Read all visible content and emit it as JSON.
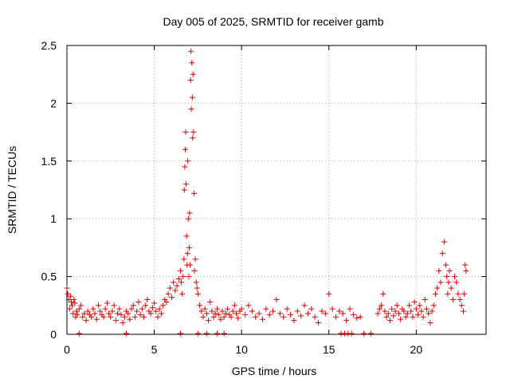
{
  "chart_data": {
    "type": "scatter",
    "title": "Day 005 of 2025, SRMTID for receiver gamb",
    "xlabel": "GPS time / hours",
    "ylabel": "SRMTID / TECUs",
    "xlim": [
      0,
      24
    ],
    "ylim": [
      0,
      2.5
    ],
    "x_ticks": [
      0,
      5,
      10,
      15,
      20
    ],
    "x_tick_labels": [
      "0",
      "5",
      "10",
      "15",
      "20"
    ],
    "y_ticks": [
      0,
      0.5,
      1,
      1.5,
      2,
      2.5
    ],
    "y_tick_labels": [
      "0",
      "0.5",
      "1",
      "1.5",
      "2",
      "2.5"
    ],
    "grid": true,
    "marker": "plus",
    "series": [
      {
        "name": "SRMTID",
        "color": "#e00000",
        "x": [
          0.0,
          0.05,
          0.1,
          0.15,
          0.2,
          0.25,
          0.3,
          0.35,
          0.4,
          0.45,
          0.5,
          0.55,
          0.6,
          0.7,
          0.8,
          0.9,
          1.0,
          1.1,
          1.2,
          1.3,
          1.4,
          1.5,
          1.6,
          1.7,
          1.8,
          1.9,
          2.0,
          2.1,
          2.2,
          2.3,
          2.4,
          2.5,
          2.6,
          2.7,
          2.8,
          2.9,
          3.0,
          3.1,
          3.2,
          3.3,
          3.4,
          3.5,
          3.6,
          3.7,
          3.8,
          3.9,
          4.0,
          4.1,
          4.2,
          4.3,
          4.4,
          4.5,
          4.6,
          4.7,
          4.8,
          4.9,
          5.0,
          5.1,
          5.2,
          5.3,
          5.4,
          5.5,
          5.6,
          5.7,
          5.8,
          5.9,
          6.0,
          6.1,
          6.2,
          6.3,
          6.4,
          6.5,
          6.55,
          6.6,
          6.65,
          6.7,
          6.72,
          6.75,
          6.78,
          6.8,
          6.82,
          6.85,
          6.88,
          6.9,
          6.92,
          6.95,
          6.98,
          7.0,
          7.02,
          7.05,
          7.08,
          7.1,
          7.12,
          7.15,
          7.18,
          7.2,
          7.22,
          7.25,
          7.28,
          7.3,
          7.35,
          7.4,
          7.45,
          7.5,
          7.6,
          7.7,
          7.8,
          7.9,
          8.0,
          8.1,
          8.2,
          8.3,
          8.4,
          8.5,
          8.6,
          8.7,
          8.8,
          8.9,
          9.0,
          9.1,
          9.2,
          9.3,
          9.4,
          9.5,
          9.6,
          9.7,
          9.8,
          9.9,
          10.0,
          10.2,
          10.4,
          10.6,
          10.8,
          11.0,
          11.2,
          11.4,
          11.6,
          11.8,
          12.0,
          12.2,
          12.4,
          12.6,
          12.8,
          13.0,
          13.2,
          13.4,
          13.6,
          13.8,
          14.0,
          14.2,
          14.4,
          14.6,
          14.8,
          15.0,
          15.2,
          15.4,
          15.6,
          15.8,
          16.0,
          16.2,
          16.4,
          16.6,
          16.8,
          17.8,
          17.9,
          18.0,
          18.1,
          18.2,
          18.3,
          18.4,
          18.5,
          18.6,
          18.7,
          18.8,
          18.9,
          19.0,
          19.1,
          19.2,
          19.3,
          19.4,
          19.5,
          19.6,
          19.7,
          19.8,
          19.9,
          20.0,
          20.1,
          20.2,
          20.3,
          20.4,
          20.5,
          20.6,
          20.7,
          20.8,
          20.9,
          21.0,
          21.1,
          21.2,
          21.3,
          21.4,
          21.5,
          21.6,
          21.7,
          21.75,
          21.8,
          21.85,
          21.9,
          22.0,
          22.1,
          22.2,
          22.3,
          22.4,
          22.5,
          22.6,
          22.7,
          22.75,
          22.8,
          22.85
        ],
        "y": [
          0.4,
          0.35,
          0.3,
          0.22,
          0.33,
          0.28,
          0.25,
          0.18,
          0.3,
          0.27,
          0.15,
          0.2,
          0.17,
          0.22,
          0.25,
          0.15,
          0.18,
          0.12,
          0.2,
          0.17,
          0.15,
          0.22,
          0.18,
          0.13,
          0.25,
          0.2,
          0.17,
          0.15,
          0.22,
          0.27,
          0.18,
          0.15,
          0.2,
          0.25,
          0.12,
          0.18,
          0.22,
          0.17,
          0.1,
          0.15,
          0.2,
          0.18,
          0.13,
          0.22,
          0.25,
          0.15,
          0.2,
          0.28,
          0.17,
          0.22,
          0.15,
          0.25,
          0.3,
          0.2,
          0.18,
          0.23,
          0.27,
          0.2,
          0.15,
          0.22,
          0.18,
          0.25,
          0.3,
          0.28,
          0.35,
          0.4,
          0.32,
          0.45,
          0.38,
          0.42,
          0.48,
          0.55,
          0.45,
          0.35,
          0.5,
          0.65,
          1.25,
          1.45,
          1.6,
          1.75,
          1.3,
          0.85,
          0.6,
          0.7,
          1.5,
          1.0,
          0.5,
          0.75,
          1.05,
          0.6,
          2.2,
          2.45,
          1.95,
          2.35,
          2.05,
          1.7,
          2.25,
          1.75,
          1.22,
          0.55,
          0.65,
          0.45,
          0.4,
          0.35,
          0.25,
          0.2,
          0.15,
          0.22,
          0.18,
          0.12,
          0.28,
          0.2,
          0.15,
          0.18,
          0.22,
          0.17,
          0.13,
          0.2,
          0.15,
          0.18,
          0.22,
          0.17,
          0.15,
          0.2,
          0.25,
          0.18,
          0.14,
          0.2,
          0.22,
          0.17,
          0.25,
          0.2,
          0.15,
          0.18,
          0.13,
          0.22,
          0.17,
          0.2,
          0.3,
          0.18,
          0.15,
          0.22,
          0.17,
          0.12,
          0.2,
          0.16,
          0.25,
          0.18,
          0.22,
          0.15,
          0.1,
          0.2,
          0.18,
          0.35,
          0.22,
          0.15,
          0.2,
          0.18,
          0.12,
          0.22,
          0.17,
          0.14,
          0.15,
          0.18,
          0.22,
          0.25,
          0.35,
          0.2,
          0.15,
          0.18,
          0.12,
          0.22,
          0.16,
          0.2,
          0.25,
          0.18,
          0.13,
          0.22,
          0.2,
          0.15,
          0.18,
          0.25,
          0.2,
          0.15,
          0.28,
          0.22,
          0.17,
          0.25,
          0.2,
          0.15,
          0.3,
          0.22,
          0.18,
          0.1,
          0.2,
          0.25,
          0.35,
          0.4,
          0.55,
          0.45,
          0.7,
          0.8,
          0.6,
          0.5,
          0.35,
          0.45,
          0.55,
          0.4,
          0.3,
          0.5,
          0.45,
          0.35,
          0.3,
          0.25,
          0.2,
          0.35,
          0.6,
          0.55
        ]
      }
    ],
    "zero_points_x": [
      0.7,
      3.4,
      6.5,
      7.5,
      8.0,
      8.6,
      9.0,
      15.7,
      15.9,
      16.1,
      16.3,
      17.0,
      17.4
    ]
  }
}
